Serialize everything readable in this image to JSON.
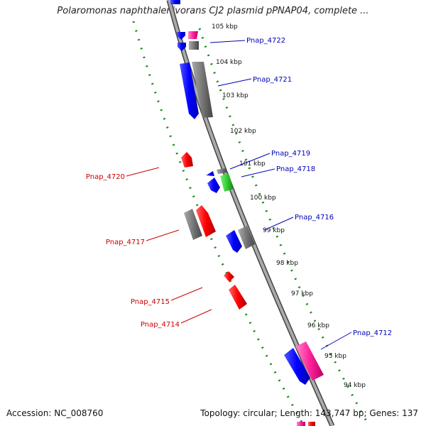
{
  "title": "Polaromonas naphthalenivorans CJ2 plasmid pPNAP04, complete ...",
  "footer": {
    "accession": "Accession: NC_008760",
    "summary": "Topology: circular; Length: 143,747 bp; Genes: 137"
  },
  "colors": {
    "forward_label": "#0000bb",
    "reverse_label": "#cc0000",
    "scale_tick": "#118811",
    "gene_blue": "#0000ff",
    "gene_gray": "#777777",
    "gene_red": "#ff0000",
    "gene_pink": "#ff33aa",
    "gene_green": "#33cc33"
  },
  "ticks": [
    "105 kbp",
    "104 kbp",
    "103 kbp",
    "102 kbp",
    "101 kbp",
    "100 kbp",
    "99 kbp",
    "98 kbp",
    "97 kbp",
    "96 kbp",
    "95 kbp",
    "94 kbp"
  ],
  "labels": {
    "right": [
      "Pnap_4722",
      "Pnap_4721",
      "Pnap_4719",
      "Pnap_4718",
      "Pnap_4716",
      "Pnap_4712"
    ],
    "left": [
      "Pnap_4720",
      "Pnap_4717",
      "Pnap_4715",
      "Pnap_4714"
    ]
  }
}
